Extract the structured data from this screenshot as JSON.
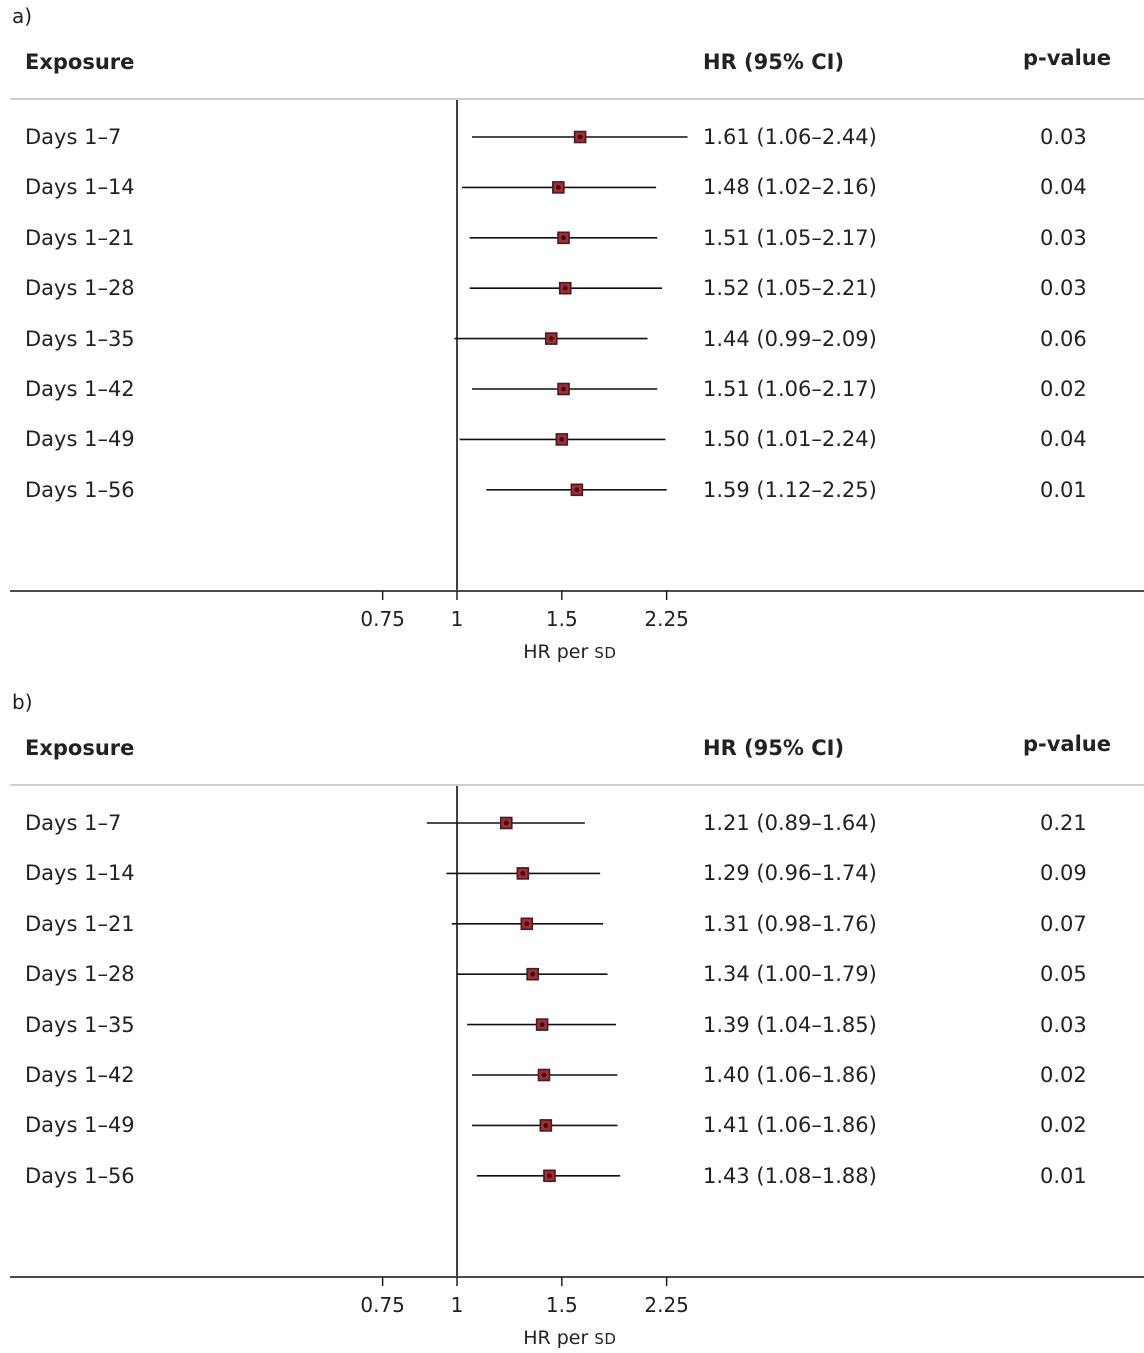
{
  "colors": {
    "marker_fill": "#c0202c",
    "marker_edge": "#2a2a2a",
    "line": "#111111"
  },
  "chart_data": [
    {
      "type": "forest",
      "panel_label": "a)",
      "headers": {
        "exposure": "Exposure",
        "hr": "HR (95% CI)",
        "p": "p-value"
      },
      "xlabel_main": "HR per ",
      "xlabel_unit": "SD",
      "x_scale": "log",
      "reference_line": 1,
      "ticks": [
        0.75,
        1,
        1.5,
        2.25
      ],
      "tick_labels": [
        "0.75",
        "1",
        "1.5",
        "2.25"
      ],
      "rows": [
        {
          "label": "Days 1–7",
          "hr": 1.61,
          "lo": 1.06,
          "hi": 2.44,
          "hr_text": "1.61 (1.06–2.44)",
          "p": "0.03"
        },
        {
          "label": "Days 1–14",
          "hr": 1.48,
          "lo": 1.02,
          "hi": 2.16,
          "hr_text": "1.48 (1.02–2.16)",
          "p": "0.04"
        },
        {
          "label": "Days 1–21",
          "hr": 1.51,
          "lo": 1.05,
          "hi": 2.17,
          "hr_text": "1.51 (1.05–2.17)",
          "p": "0.03"
        },
        {
          "label": "Days 1–28",
          "hr": 1.52,
          "lo": 1.05,
          "hi": 2.21,
          "hr_text": "1.52 (1.05–2.21)",
          "p": "0.03"
        },
        {
          "label": "Days 1–35",
          "hr": 1.44,
          "lo": 0.99,
          "hi": 2.09,
          "hr_text": "1.44 (0.99–2.09)",
          "p": "0.06"
        },
        {
          "label": "Days 1–42",
          "hr": 1.51,
          "lo": 1.06,
          "hi": 2.17,
          "hr_text": "1.51 (1.06–2.17)",
          "p": "0.02"
        },
        {
          "label": "Days 1–49",
          "hr": 1.5,
          "lo": 1.01,
          "hi": 2.24,
          "hr_text": "1.50 (1.01–2.24)",
          "p": "0.04"
        },
        {
          "label": "Days 1–56",
          "hr": 1.59,
          "lo": 1.12,
          "hi": 2.25,
          "hr_text": "1.59 (1.12–2.25)",
          "p": "0.01"
        }
      ]
    },
    {
      "type": "forest",
      "panel_label": "b)",
      "headers": {
        "exposure": "Exposure",
        "hr": "HR (95% CI)",
        "p": "p-value"
      },
      "xlabel_main": "HR per ",
      "xlabel_unit": "SD",
      "x_scale": "log",
      "reference_line": 1,
      "ticks": [
        0.75,
        1,
        1.5,
        2.25
      ],
      "tick_labels": [
        "0.75",
        "1",
        "1.5",
        "2.25"
      ],
      "rows": [
        {
          "label": "Days 1–7",
          "hr": 1.21,
          "lo": 0.89,
          "hi": 1.64,
          "hr_text": "1.21 (0.89–1.64)",
          "p": "0.21"
        },
        {
          "label": "Days 1–14",
          "hr": 1.29,
          "lo": 0.96,
          "hi": 1.74,
          "hr_text": "1.29 (0.96–1.74)",
          "p": "0.09"
        },
        {
          "label": "Days 1–21",
          "hr": 1.31,
          "lo": 0.98,
          "hi": 1.76,
          "hr_text": "1.31 (0.98–1.76)",
          "p": "0.07"
        },
        {
          "label": "Days 1–28",
          "hr": 1.34,
          "lo": 1.0,
          "hi": 1.79,
          "hr_text": "1.34 (1.00–1.79)",
          "p": "0.05"
        },
        {
          "label": "Days 1–35",
          "hr": 1.39,
          "lo": 1.04,
          "hi": 1.85,
          "hr_text": "1.39 (1.04–1.85)",
          "p": "0.03"
        },
        {
          "label": "Days 1–42",
          "hr": 1.4,
          "lo": 1.06,
          "hi": 1.86,
          "hr_text": "1.40 (1.06–1.86)",
          "p": "0.02"
        },
        {
          "label": "Days 1–49",
          "hr": 1.41,
          "lo": 1.06,
          "hi": 1.86,
          "hr_text": "1.41 (1.06–1.86)",
          "p": "0.02"
        },
        {
          "label": "Days 1–56",
          "hr": 1.43,
          "lo": 1.08,
          "hi": 1.88,
          "hr_text": "1.43 (1.08–1.88)",
          "p": "0.01"
        }
      ]
    }
  ]
}
